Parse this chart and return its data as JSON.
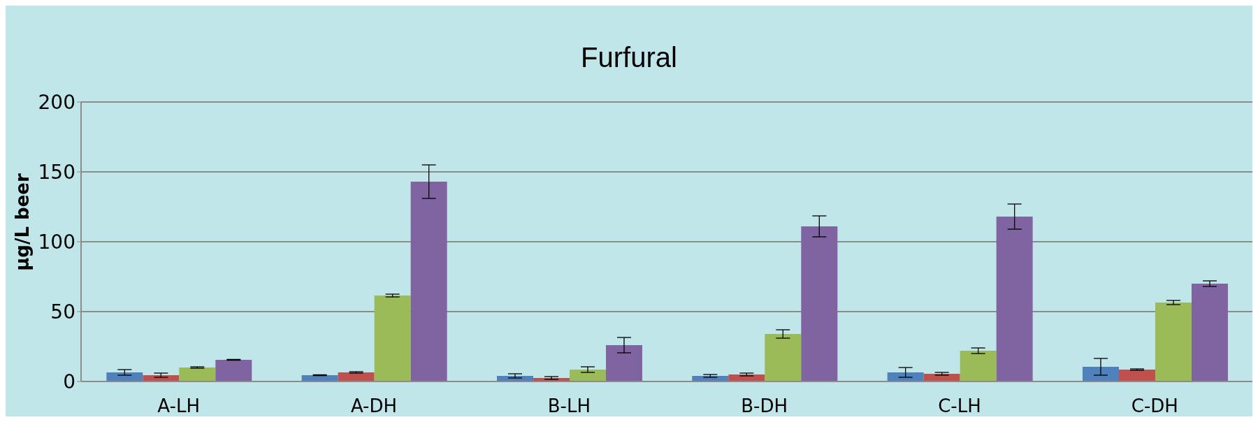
{
  "chart_data": {
    "type": "bar",
    "title": "Furfural",
    "ylabel": "µg/L beer",
    "categories": [
      "A-LH",
      "A-DH",
      "B-LH",
      "B-DH",
      "C-LH",
      "C-DH"
    ],
    "series": [
      {
        "color": "#4f81bd",
        "values": [
          6.5,
          4.5,
          4,
          4,
          6.5,
          10.5
        ],
        "errors": [
          2,
          0.3,
          1.5,
          1,
          3.5,
          6
        ]
      },
      {
        "color": "#c0504d",
        "values": [
          4.5,
          6.5,
          2.5,
          5,
          5.5,
          8.5
        ],
        "errors": [
          1.5,
          0.5,
          1,
          1,
          1,
          0.5
        ]
      },
      {
        "color": "#9bbb59",
        "values": [
          10,
          61.5,
          8.5,
          34,
          22,
          56.5
        ],
        "errors": [
          0.5,
          1,
          2,
          3,
          2,
          1.5
        ]
      },
      {
        "color": "#8064a2",
        "values": [
          15.5,
          143,
          26,
          111,
          118,
          70
        ],
        "errors": [
          0.3,
          12,
          5.5,
          7.5,
          9,
          2
        ]
      }
    ],
    "ylim": [
      0,
      200
    ],
    "yticks": [
      0,
      50,
      100,
      150,
      200
    ],
    "grid": "y"
  }
}
